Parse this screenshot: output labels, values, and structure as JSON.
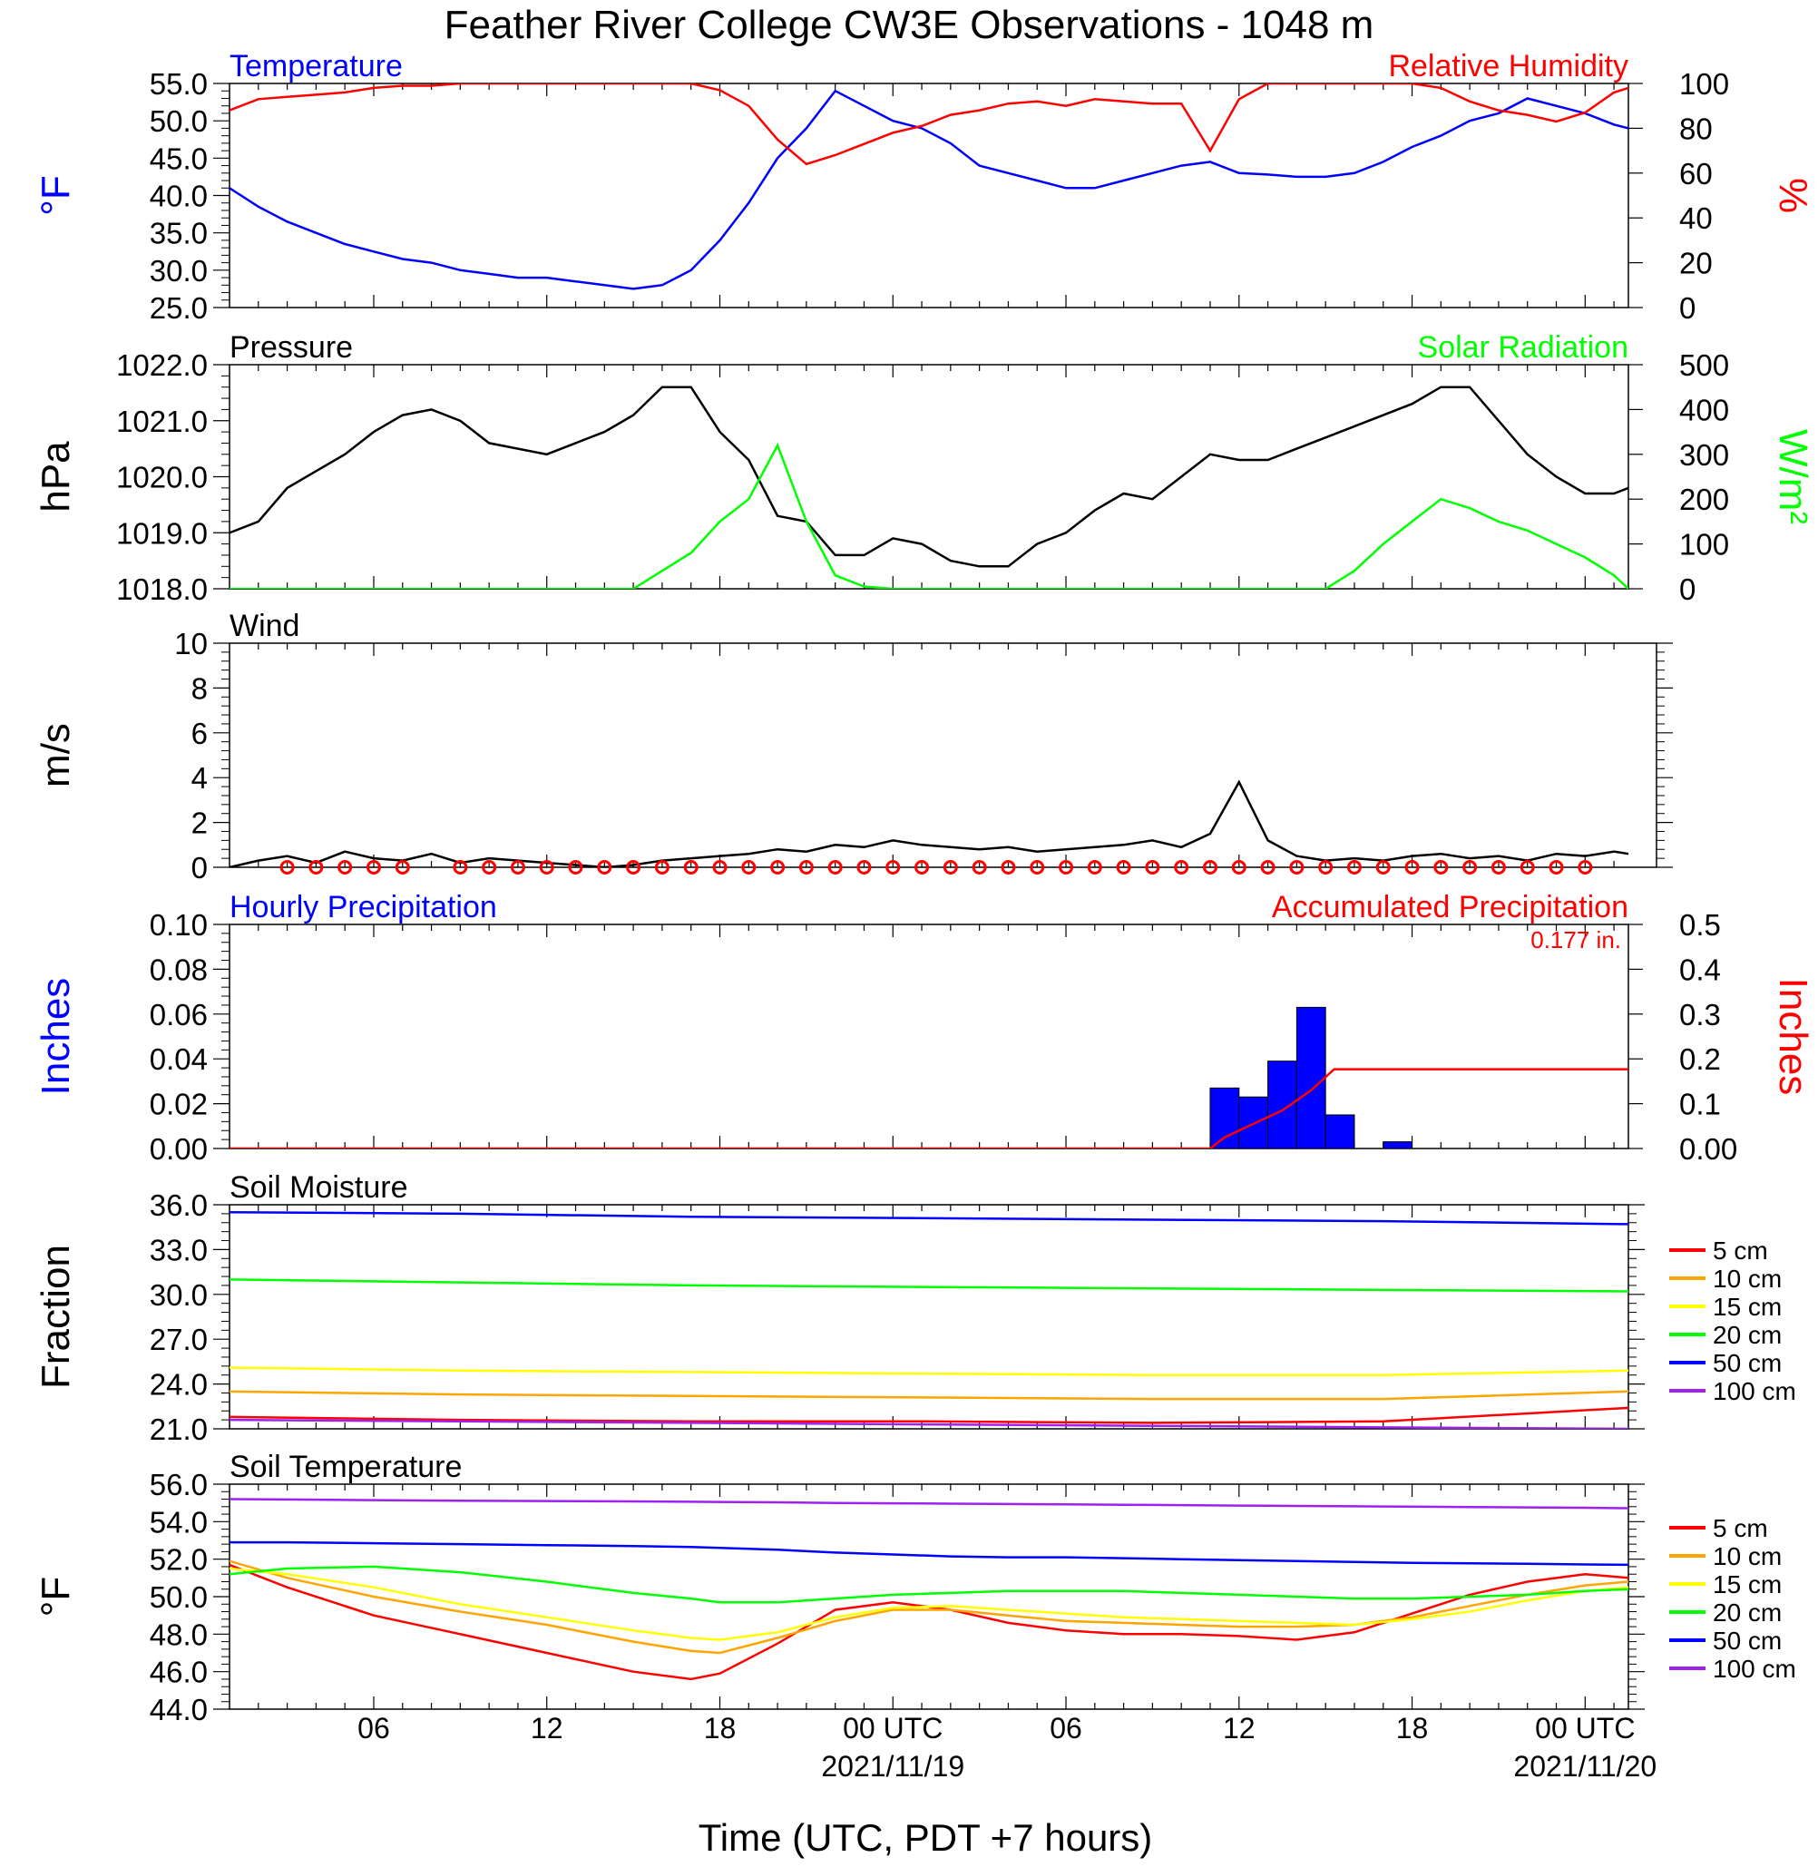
{
  "title": "Feather River College CW3E Observations - 1048 m",
  "xaxis": {
    "label": "Time (UTC, PDT +7 hours)",
    "ticks": [
      "06",
      "12",
      "18",
      "00 UTC",
      "06",
      "12",
      "18",
      "00 UTC"
    ],
    "dates": [
      "2021/11/19",
      "2021/11/20"
    ],
    "range_hours": [
      1,
      49.5
    ]
  },
  "colors": {
    "blue": "#0000ff",
    "red": "#ff0000",
    "green": "#00ff00",
    "black": "#000000",
    "orange": "#ffa500",
    "yellow": "#ffff00",
    "purple": "#a020f0"
  },
  "chart_data": [
    {
      "id": "temp_rh",
      "type": "line",
      "title_left": "Temperature",
      "title_right": "Relative Humidity",
      "ylabel_left": "°F",
      "ylabel_right": "%",
      "ylim_left": [
        25,
        55
      ],
      "ylim_right": [
        0,
        100
      ],
      "yticks_left": [
        "25.0",
        "30.0",
        "35.0",
        "40.0",
        "45.0",
        "50.0",
        "55.0"
      ],
      "yticks_right": [
        "0",
        "20",
        "40",
        "60",
        "80",
        "100"
      ],
      "x": [
        1,
        2,
        3,
        4,
        5,
        6,
        7,
        8,
        9,
        10,
        11,
        12,
        13,
        14,
        15,
        16,
        17,
        18,
        19,
        20,
        21,
        22,
        23,
        24,
        25,
        26,
        27,
        28,
        29,
        30,
        31,
        32,
        33,
        34,
        35,
        36,
        37,
        38,
        39,
        40,
        41,
        42,
        43,
        44,
        45,
        46,
        47,
        48,
        49,
        49.5
      ],
      "series": [
        {
          "name": "Temperature",
          "axis": "left",
          "color": "blue",
          "values": [
            41,
            38.5,
            36.5,
            35,
            33.5,
            32.5,
            31.5,
            31,
            30,
            29.5,
            29,
            29,
            28.5,
            28,
            27.5,
            28,
            30,
            34,
            39,
            45,
            49,
            54,
            52,
            50,
            49,
            47,
            44,
            43,
            42,
            41,
            41,
            42,
            43,
            44,
            44.5,
            43,
            42.8,
            42.5,
            42.5,
            43,
            44.5,
            46.5,
            48,
            50,
            51,
            53,
            52,
            51,
            49.5,
            49
          ]
        },
        {
          "name": "Relative Humidity",
          "axis": "right",
          "color": "red",
          "values": [
            88,
            93,
            94,
            95,
            96,
            98,
            99,
            99,
            100,
            100,
            100,
            100,
            100,
            100,
            100,
            100,
            100,
            97,
            90,
            75,
            64,
            68,
            73,
            78,
            81,
            86,
            88,
            91,
            92,
            90,
            93,
            92,
            91,
            91,
            70,
            93,
            100,
            100,
            100,
            100,
            100,
            100,
            98,
            92,
            88,
            86,
            83,
            87,
            96,
            98
          ]
        }
      ]
    },
    {
      "id": "pres_solar",
      "type": "line",
      "title_left": "Pressure",
      "title_right": "Solar Radiation",
      "ylabel_left": "hPa",
      "ylabel_right": "W/m²",
      "ylim_left": [
        1018,
        1022
      ],
      "ylim_right": [
        0,
        500
      ],
      "yticks_left": [
        "1018.0",
        "1019.0",
        "1020.0",
        "1021.0",
        "1022.0"
      ],
      "yticks_right": [
        "0",
        "100",
        "200",
        "300",
        "400",
        "500"
      ],
      "x": [
        1,
        2,
        3,
        4,
        5,
        6,
        7,
        8,
        9,
        10,
        11,
        12,
        13,
        14,
        15,
        16,
        17,
        18,
        19,
        20,
        21,
        22,
        23,
        24,
        25,
        26,
        27,
        28,
        29,
        30,
        31,
        32,
        33,
        34,
        35,
        36,
        37,
        38,
        39,
        40,
        41,
        42,
        43,
        44,
        45,
        46,
        47,
        48,
        49,
        49.5
      ],
      "series": [
        {
          "name": "Pressure",
          "axis": "left",
          "color": "black",
          "values": [
            1019,
            1019.2,
            1019.8,
            1020.1,
            1020.4,
            1020.8,
            1021.1,
            1021.2,
            1021,
            1020.6,
            1020.5,
            1020.4,
            1020.6,
            1020.8,
            1021.1,
            1021.6,
            1021.6,
            1020.8,
            1020.3,
            1019.3,
            1019.2,
            1018.6,
            1018.6,
            1018.9,
            1018.8,
            1018.5,
            1018.4,
            1018.4,
            1018.8,
            1019.0,
            1019.4,
            1019.7,
            1019.6,
            1020.0,
            1020.4,
            1020.3,
            1020.3,
            1020.5,
            1020.7,
            1020.9,
            1021.1,
            1021.3,
            1021.6,
            1021.6,
            1021.0,
            1020.4,
            1020.0,
            1019.7,
            1019.7,
            1019.8
          ]
        },
        {
          "name": "Solar Radiation",
          "axis": "right",
          "color": "green",
          "values": [
            0,
            0,
            0,
            0,
            0,
            0,
            0,
            0,
            0,
            0,
            0,
            0,
            0,
            0,
            0,
            40,
            80,
            150,
            200,
            320,
            150,
            30,
            5,
            0,
            0,
            0,
            0,
            0,
            0,
            0,
            0,
            0,
            0,
            0,
            0,
            0,
            0,
            0,
            0,
            40,
            100,
            150,
            200,
            180,
            150,
            130,
            100,
            70,
            30,
            0
          ]
        }
      ]
    },
    {
      "id": "wind",
      "type": "line",
      "title_left": "Wind",
      "ylabel_left": "m/s",
      "ylim_left": [
        0,
        10
      ],
      "yticks_left": [
        "0",
        "2",
        "4",
        "6",
        "8",
        "10"
      ],
      "x": [
        1,
        2,
        3,
        4,
        5,
        6,
        7,
        8,
        9,
        10,
        11,
        12,
        13,
        14,
        15,
        16,
        17,
        18,
        19,
        20,
        21,
        22,
        23,
        24,
        25,
        26,
        27,
        28,
        29,
        30,
        31,
        32,
        33,
        34,
        35,
        36,
        37,
        38,
        39,
        40,
        41,
        42,
        43,
        44,
        45,
        46,
        47,
        48,
        49,
        49.5
      ],
      "series": [
        {
          "name": "Wind",
          "axis": "left",
          "color": "black",
          "values": [
            0,
            0.3,
            0.5,
            0.2,
            0.7,
            0.4,
            0.3,
            0.6,
            0.2,
            0.4,
            0.3,
            0.2,
            0.1,
            0,
            0.1,
            0.3,
            0.4,
            0.5,
            0.6,
            0.8,
            0.7,
            1.0,
            0.9,
            1.2,
            1.0,
            0.9,
            0.8,
            0.9,
            0.7,
            0.8,
            0.9,
            1.0,
            1.2,
            0.9,
            1.5,
            3.8,
            1.2,
            0.5,
            0.3,
            0.4,
            0.3,
            0.5,
            0.6,
            0.4,
            0.5,
            0.3,
            0.6,
            0.5,
            0.7,
            0.6
          ]
        }
      ],
      "barb_hours": [
        3,
        4,
        5,
        6,
        7,
        9,
        10,
        11,
        12,
        13,
        14,
        15,
        16,
        17,
        18,
        19,
        20,
        21,
        22,
        23,
        24,
        25,
        26,
        27,
        28,
        29,
        30,
        31,
        32,
        33,
        34,
        35,
        36,
        37,
        38,
        39,
        40,
        41,
        42,
        43,
        44,
        45,
        46,
        47,
        48
      ]
    },
    {
      "id": "precip",
      "type": "bar",
      "title_left": "Hourly Precipitation",
      "title_right": "Accumulated Precipitation",
      "annotation": "0.177 in.",
      "ylabel_left": "Inches",
      "ylabel_right": "Inches",
      "ylim_left": [
        0,
        0.1
      ],
      "ylim_right": [
        0,
        0.5
      ],
      "yticks_left": [
        "0.00",
        "0.02",
        "0.04",
        "0.06",
        "0.08",
        "0.10"
      ],
      "yticks_right": [
        "0.00",
        "0.1",
        "0.2",
        "0.3",
        "0.4",
        "0.5"
      ],
      "bars": {
        "hours": [
          35,
          36,
          37,
          38,
          39,
          41
        ],
        "values": [
          0.027,
          0.023,
          0.039,
          0.063,
          0.015,
          0.003
        ]
      },
      "series": [
        {
          "name": "Accumulated Precipitation",
          "axis": "right",
          "color": "red",
          "x": [
            1,
            35,
            35.5,
            36.5,
            37.5,
            38.5,
            39.3,
            49.5
          ],
          "values": [
            0,
            0,
            0.025,
            0.055,
            0.085,
            0.13,
            0.177,
            0.177
          ]
        }
      ]
    },
    {
      "id": "soil_moist",
      "type": "line",
      "title_left": "Soil Moisture",
      "ylabel_left": "Fraction",
      "ylim_left": [
        21,
        36
      ],
      "yticks_left": [
        "21.0",
        "24.0",
        "27.0",
        "30.0",
        "33.0",
        "36.0"
      ],
      "legend": [
        "5 cm",
        "10 cm",
        "15 cm",
        "20 cm",
        "50 cm",
        "100 cm"
      ],
      "x": [
        1,
        9,
        17,
        25,
        33,
        41,
        49.5
      ],
      "series": [
        {
          "name": "5 cm",
          "color": "red",
          "values": [
            21.8,
            21.6,
            21.5,
            21.5,
            21.4,
            21.5,
            22.4
          ]
        },
        {
          "name": "10 cm",
          "color": "orange",
          "values": [
            23.5,
            23.3,
            23.2,
            23.1,
            23.0,
            23.0,
            23.5
          ]
        },
        {
          "name": "15 cm",
          "color": "yellow",
          "values": [
            25.1,
            24.9,
            24.8,
            24.7,
            24.6,
            24.6,
            24.9
          ]
        },
        {
          "name": "20 cm",
          "color": "green",
          "values": [
            31.0,
            30.8,
            30.6,
            30.5,
            30.4,
            30.3,
            30.2
          ]
        },
        {
          "name": "50 cm",
          "color": "blue",
          "values": [
            35.5,
            35.4,
            35.2,
            35.1,
            35.0,
            34.9,
            34.7
          ]
        },
        {
          "name": "100 cm",
          "color": "purple",
          "values": [
            21.6,
            21.5,
            21.4,
            21.3,
            21.2,
            21.1,
            21.0
          ]
        }
      ]
    },
    {
      "id": "soil_temp",
      "type": "line",
      "title_left": "Soil Temperature",
      "ylabel_left": "°F",
      "ylim_left": [
        44,
        56
      ],
      "yticks_left": [
        "44.0",
        "46.0",
        "48.0",
        "50.0",
        "52.0",
        "54.0",
        "56.0"
      ],
      "legend": [
        "5 cm",
        "10 cm",
        "15 cm",
        "20 cm",
        "50 cm",
        "100 cm"
      ],
      "x": [
        1,
        3,
        6,
        9,
        12,
        15,
        17,
        18,
        20,
        22,
        24,
        26,
        28,
        30,
        32,
        34,
        36,
        38,
        40,
        42,
        44,
        46,
        48,
        49.5
      ],
      "series": [
        {
          "name": "5 cm",
          "color": "red",
          "values": [
            51.7,
            50.5,
            49,
            48,
            47,
            46,
            45.6,
            45.9,
            47.5,
            49.3,
            49.7,
            49.3,
            48.6,
            48.2,
            48.0,
            48.0,
            47.9,
            47.7,
            48.1,
            49.1,
            50.1,
            50.8,
            51.2,
            51.0
          ]
        },
        {
          "name": "10 cm",
          "color": "orange",
          "values": [
            51.9,
            51,
            50,
            49.2,
            48.5,
            47.6,
            47.1,
            47.0,
            47.8,
            48.7,
            49.3,
            49.3,
            49.0,
            48.7,
            48.6,
            48.5,
            48.4,
            48.4,
            48.5,
            48.9,
            49.5,
            50.1,
            50.6,
            50.8
          ]
        },
        {
          "name": "15 cm",
          "color": "yellow",
          "values": [
            51.5,
            51.2,
            50.5,
            49.6,
            48.9,
            48.2,
            47.8,
            47.7,
            48.1,
            48.9,
            49.4,
            49.5,
            49.3,
            49.1,
            48.9,
            48.8,
            48.7,
            48.6,
            48.5,
            48.8,
            49.2,
            49.8,
            50.3,
            50.5
          ]
        },
        {
          "name": "20 cm",
          "color": "green",
          "values": [
            51.2,
            51.5,
            51.6,
            51.3,
            50.8,
            50.2,
            49.9,
            49.7,
            49.7,
            49.9,
            50.1,
            50.2,
            50.3,
            50.3,
            50.3,
            50.2,
            50.1,
            50.0,
            49.9,
            49.9,
            50.0,
            50.1,
            50.3,
            50.4
          ]
        },
        {
          "name": "50 cm",
          "color": "blue",
          "values": [
            52.9,
            52.9,
            52.85,
            52.8,
            52.75,
            52.7,
            52.65,
            52.6,
            52.5,
            52.35,
            52.25,
            52.15,
            52.1,
            52.1,
            52.05,
            52.0,
            51.95,
            51.9,
            51.85,
            51.8,
            51.78,
            51.75,
            51.72,
            51.7
          ]
        },
        {
          "name": "100 cm",
          "color": "purple",
          "values": [
            55.2,
            55.18,
            55.15,
            55.12,
            55.1,
            55.08,
            55.06,
            55.05,
            55.03,
            55.0,
            54.98,
            54.96,
            54.94,
            54.92,
            54.9,
            54.88,
            54.86,
            54.84,
            54.82,
            54.8,
            54.78,
            54.76,
            54.74,
            54.72
          ]
        }
      ]
    }
  ]
}
